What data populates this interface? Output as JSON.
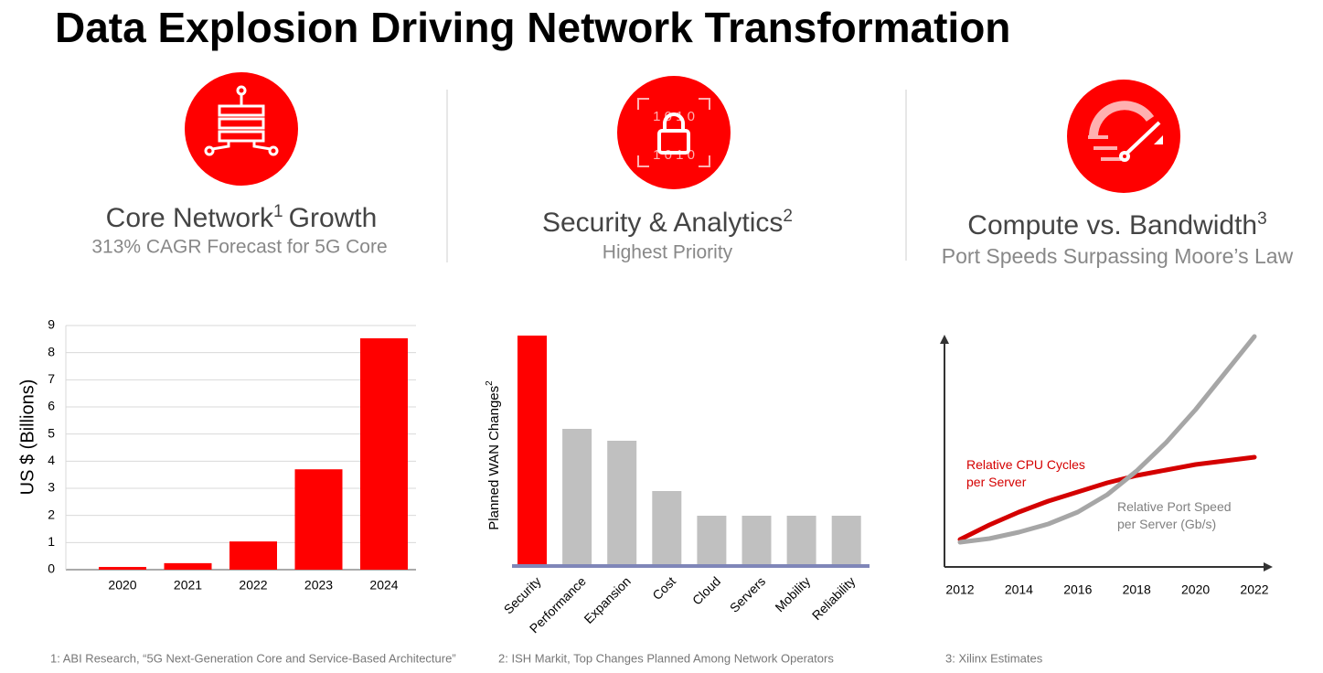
{
  "title": "Data Explosion Driving Network Transformation",
  "panels": [
    {
      "heading": "Core Network",
      "heading_sup": "1",
      "heading_rest": "Growth",
      "subheading": "313% CAGR Forecast for 5G Core"
    },
    {
      "heading": "Security & Analytics",
      "heading_sup": "2",
      "subheading": "Highest Priority"
    },
    {
      "heading": "Compute vs. Bandwidth",
      "heading_sup": "3",
      "subheading": "Port Speeds Surpassing Moore’s Law"
    }
  ],
  "footnotes": [
    "1: ABI Research, “5G Next-Generation Core and Service-Based Architecture”",
    "2: ISH Markit, Top Changes Planned Among Network Operators",
    "3: Xilinx Estimates"
  ],
  "chart_data": [
    {
      "type": "bar",
      "categories": [
        "2020",
        "2021",
        "2022",
        "2023",
        "2024"
      ],
      "values": [
        0.1,
        0.24,
        1.04,
        3.7,
        8.53
      ],
      "color": "#ff0000",
      "ylim": [
        0,
        9
      ],
      "yticks": [
        0,
        1,
        2,
        3,
        4,
        5,
        6,
        7,
        8,
        9
      ],
      "ylabel": "US $ (Billions)",
      "grid": true
    },
    {
      "type": "bar",
      "categories": [
        "Security",
        "Performance",
        "Expansion",
        "Cost",
        "Cloud",
        "Servers",
        "Mobility",
        "Reliability"
      ],
      "values": [
        250,
        148,
        135,
        80,
        53,
        53,
        53,
        53
      ],
      "colors": [
        "#ff0000",
        "#c0c0c0",
        "#c0c0c0",
        "#c0c0c0",
        "#c0c0c0",
        "#c0c0c0",
        "#c0c0c0",
        "#c0c0c0"
      ],
      "ylabel": "Planned WAN Changes",
      "ylabel_sup": "2"
    },
    {
      "type": "line",
      "x": [
        2012,
        2013,
        2014,
        2015,
        2016,
        2017,
        2018,
        2019,
        2020,
        2021,
        2022
      ],
      "xlim": [
        2012,
        2022
      ],
      "xticks": [
        2012,
        2014,
        2016,
        2018,
        2020,
        2022
      ],
      "series": [
        {
          "name": "Relative CPU Cycles per Server",
          "color": "#d40000",
          "values": [
            30,
            46,
            60,
            72,
            82,
            92,
            100,
            106,
            112,
            116,
            120
          ]
        },
        {
          "name": "Relative Port Speed per Server (Gb/s)",
          "color": "#a6a6a6",
          "values": [
            27,
            31,
            38,
            47,
            60,
            79,
            105,
            136,
            172,
            212,
            252
          ]
        }
      ]
    }
  ]
}
